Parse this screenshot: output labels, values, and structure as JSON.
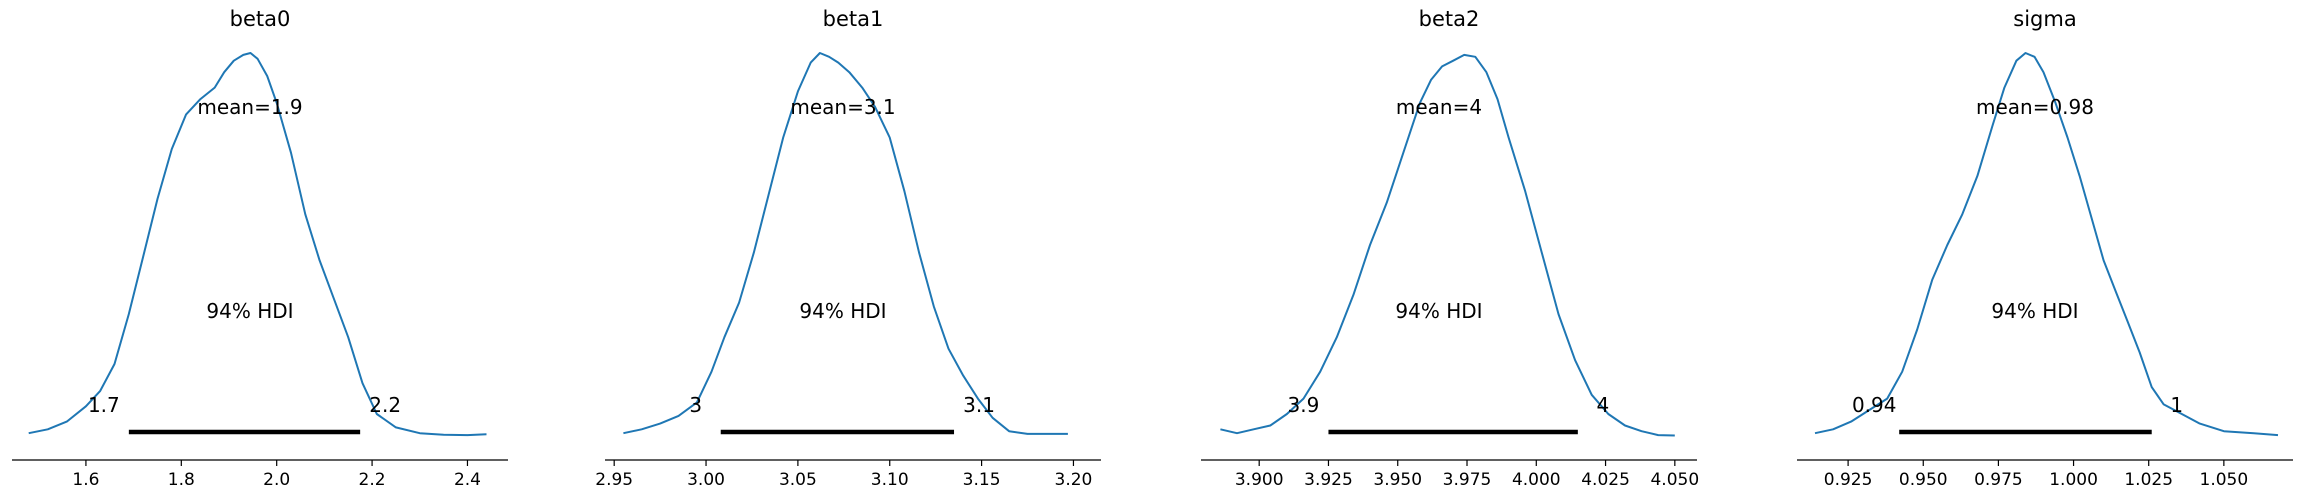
{
  "chart_data": [
    {
      "type": "line",
      "title": "beta0",
      "mean_label": "mean=1.9",
      "hdi_label": "94% HDI",
      "hdi_low_label": "1.7",
      "hdi_high_label": "2.2",
      "hdi": [
        1.69,
        2.175
      ],
      "xlim": [
        1.445,
        2.485
      ],
      "xticks": [
        1.6,
        1.8,
        2.0,
        2.2,
        2.4
      ],
      "xtick_labels": [
        "1.6",
        "1.8",
        "2.0",
        "2.2",
        "2.4"
      ],
      "line_color": "#1f77b4",
      "density": {
        "x": [
          1.48,
          1.52,
          1.56,
          1.6,
          1.63,
          1.66,
          1.69,
          1.72,
          1.75,
          1.78,
          1.81,
          1.84,
          1.87,
          1.89,
          1.91,
          1.93,
          1.945,
          1.96,
          1.98,
          2.0,
          2.03,
          2.06,
          2.09,
          2.12,
          2.15,
          2.18,
          2.21,
          2.25,
          2.3,
          2.35,
          2.4,
          2.44
        ],
        "y": [
          0.01,
          0.02,
          0.04,
          0.08,
          0.12,
          0.19,
          0.32,
          0.47,
          0.62,
          0.75,
          0.84,
          0.88,
          0.91,
          0.95,
          0.98,
          0.995,
          1.0,
          0.985,
          0.94,
          0.87,
          0.74,
          0.58,
          0.46,
          0.36,
          0.26,
          0.14,
          0.06,
          0.025,
          0.01,
          0.006,
          0.005,
          0.007
        ]
      }
    },
    {
      "type": "line",
      "title": "beta1",
      "mean_label": "mean=3.1",
      "hdi_label": "94% HDI",
      "hdi_low_label": "3",
      "hdi_high_label": "3.1",
      "hdi": [
        3.008,
        3.135
      ],
      "xlim": [
        2.945,
        3.215
      ],
      "xticks": [
        2.95,
        3.0,
        3.05,
        3.1,
        3.15,
        3.2
      ],
      "xtick_labels": [
        "2.95",
        "3.00",
        "3.05",
        "3.10",
        "3.15",
        "3.20"
      ],
      "line_color": "#1f77b4",
      "density": {
        "x": [
          2.955,
          2.965,
          2.975,
          2.985,
          2.995,
          3.003,
          3.01,
          3.018,
          3.026,
          3.034,
          3.042,
          3.05,
          3.057,
          3.062,
          3.067,
          3.072,
          3.078,
          3.085,
          3.092,
          3.1,
          3.108,
          3.116,
          3.124,
          3.132,
          3.14,
          3.148,
          3.156,
          3.165,
          3.175,
          3.185,
          3.197
        ],
        "y": [
          0.01,
          0.02,
          0.035,
          0.055,
          0.09,
          0.17,
          0.26,
          0.35,
          0.48,
          0.63,
          0.78,
          0.9,
          0.975,
          1.0,
          0.99,
          0.975,
          0.95,
          0.91,
          0.86,
          0.78,
          0.64,
          0.48,
          0.34,
          0.23,
          0.16,
          0.1,
          0.05,
          0.015,
          0.008,
          0.008,
          0.008
        ]
      }
    },
    {
      "type": "line",
      "title": "beta2",
      "mean_label": "mean=4",
      "hdi_label": "94% HDI",
      "hdi_low_label": "3.9",
      "hdi_high_label": "4",
      "hdi": [
        3.925,
        4.015
      ],
      "xlim": [
        3.879,
        4.058
      ],
      "xticks": [
        3.9,
        3.925,
        3.95,
        3.975,
        4.0,
        4.025,
        4.05
      ],
      "xtick_labels": [
        "3.900",
        "3.925",
        "3.950",
        "3.975",
        "4.000",
        "4.025",
        "4.050"
      ],
      "line_color": "#1f77b4",
      "density": {
        "x": [
          3.886,
          3.892,
          3.898,
          3.904,
          3.91,
          3.916,
          3.922,
          3.928,
          3.934,
          3.94,
          3.946,
          3.952,
          3.958,
          3.962,
          3.966,
          3.97,
          3.974,
          3.978,
          3.982,
          3.986,
          3.99,
          3.996,
          4.002,
          4.008,
          4.014,
          4.02,
          4.026,
          4.032,
          4.038,
          4.044,
          4.05
        ],
        "y": [
          0.02,
          0.01,
          0.02,
          0.03,
          0.06,
          0.1,
          0.17,
          0.26,
          0.37,
          0.5,
          0.61,
          0.74,
          0.87,
          0.93,
          0.965,
          0.98,
          0.995,
          0.99,
          0.95,
          0.88,
          0.78,
          0.64,
          0.48,
          0.32,
          0.2,
          0.11,
          0.06,
          0.03,
          0.015,
          0.005,
          0.004
        ]
      }
    },
    {
      "type": "line",
      "title": "sigma",
      "mean_label": "mean=0.98",
      "hdi_label": "94% HDI",
      "hdi_low_label": "0.94",
      "hdi_high_label": "1",
      "hdi": [
        0.942,
        1.026
      ],
      "xlim": [
        0.908,
        1.073
      ],
      "xticks": [
        0.925,
        0.95,
        0.975,
        1.0,
        1.025,
        1.05
      ],
      "xtick_labels": [
        "0.925",
        "0.950",
        "0.975",
        "1.000",
        "1.025",
        "1.050"
      ],
      "line_color": "#1f77b4",
      "density": {
        "x": [
          0.914,
          0.92,
          0.926,
          0.932,
          0.938,
          0.943,
          0.948,
          0.953,
          0.958,
          0.963,
          0.968,
          0.973,
          0.977,
          0.981,
          0.984,
          0.987,
          0.99,
          0.994,
          0.998,
          1.002,
          1.006,
          1.01,
          1.014,
          1.018,
          1.022,
          1.026,
          1.03,
          1.036,
          1.042,
          1.05,
          1.06,
          1.068
        ],
        "y": [
          0.01,
          0.02,
          0.04,
          0.07,
          0.1,
          0.17,
          0.28,
          0.41,
          0.5,
          0.58,
          0.68,
          0.81,
          0.91,
          0.98,
          1.0,
          0.99,
          0.95,
          0.87,
          0.78,
          0.68,
          0.57,
          0.46,
          0.38,
          0.3,
          0.22,
          0.13,
          0.085,
          0.06,
          0.035,
          0.015,
          0.01,
          0.005
        ]
      }
    }
  ]
}
